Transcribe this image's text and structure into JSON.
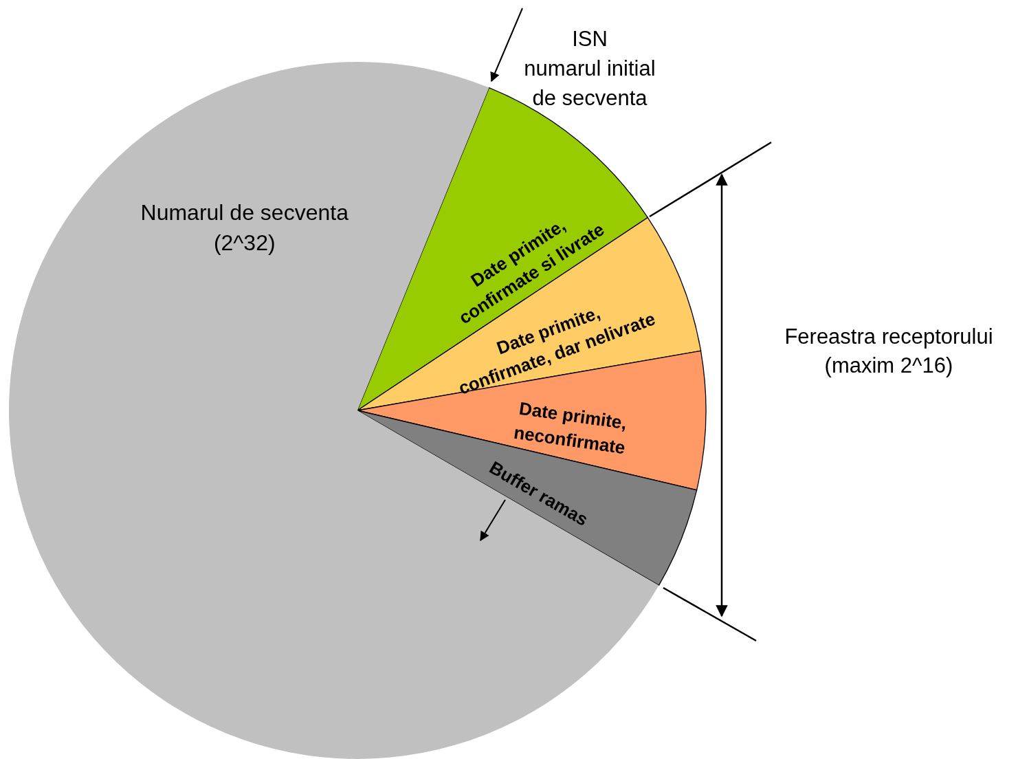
{
  "chart_data": {
    "type": "pie",
    "categories": [
      "Date primite,\nconfirmate si livrate",
      "Date primite,\nconfirmate, dar nelivrate",
      "Date primite,\nneconfirmate",
      "Buffer ramas",
      "Numarul de secventa\n(2^32)"
    ],
    "values": [
      9.5,
      6.6,
      6.4,
      4.7,
      72.8
    ],
    "colors": [
      "#99cc00",
      "#ffcc66",
      "#ff9966",
      "#808080",
      "#c0c0c0"
    ],
    "annotations": [
      "ISN\nnumarul initial\nde secventa",
      "Fereastra receptorului\n(maxim 2^16)"
    ]
  }
}
